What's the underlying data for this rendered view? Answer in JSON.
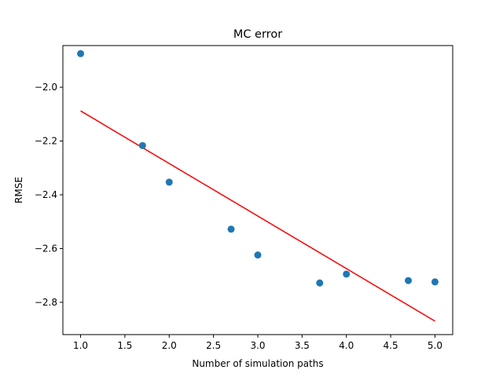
{
  "chart_data": {
    "type": "scatter",
    "title": "MC error",
    "xlabel": "Number of simulation paths",
    "ylabel": "RMSE",
    "xlim": [
      0.8,
      5.2
    ],
    "ylim": [
      -2.92,
      -1.845
    ],
    "xticks": [
      1.0,
      1.5,
      2.0,
      2.5,
      3.0,
      3.5,
      4.0,
      4.5,
      5.0
    ],
    "xtick_labels": [
      "1.0",
      "1.5",
      "2.0",
      "2.5",
      "3.0",
      "3.5",
      "4.0",
      "4.5",
      "5.0"
    ],
    "yticks": [
      -2.8,
      -2.6,
      -2.4,
      -2.2,
      -2.0
    ],
    "ytick_labels": [
      "−2.8",
      "−2.6",
      "−2.4",
      "−2.2",
      "−2.0"
    ],
    "grid": false,
    "series": [
      {
        "kind": "scatter",
        "color": "#1f77b4",
        "x": [
          1.0,
          1.699,
          2.0,
          2.699,
          3.0,
          3.699,
          4.0,
          4.699,
          5.0
        ],
        "y": [
          -1.875,
          -2.217,
          -2.353,
          -2.528,
          -2.624,
          -2.728,
          -2.695,
          -2.719,
          -2.724
        ]
      },
      {
        "kind": "line",
        "color": "#ff0000",
        "x": [
          1.0,
          5.0
        ],
        "y": [
          -2.088,
          -2.87
        ]
      }
    ]
  }
}
